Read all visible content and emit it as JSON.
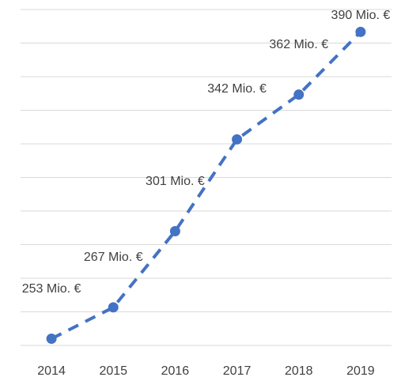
{
  "chart_data": {
    "type": "line",
    "categories": [
      "2014",
      "2015",
      "2016",
      "2017",
      "2018",
      "2019"
    ],
    "series": [
      {
        "color": "#4472c4",
        "values": [
          253,
          267,
          301,
          342,
          362,
          390
        ],
        "value_labels": [
          "253 Mio. €",
          "267 Mio. €",
          "301 Mio. €",
          "342 Mio. €",
          "362 Mio. €",
          "390 Mio. €"
        ]
      }
    ],
    "ylim": [
      250,
      400
    ],
    "yticks": [
      250,
      265,
      280,
      295,
      310,
      325,
      340,
      355,
      370,
      385,
      400
    ],
    "grid": true
  }
}
